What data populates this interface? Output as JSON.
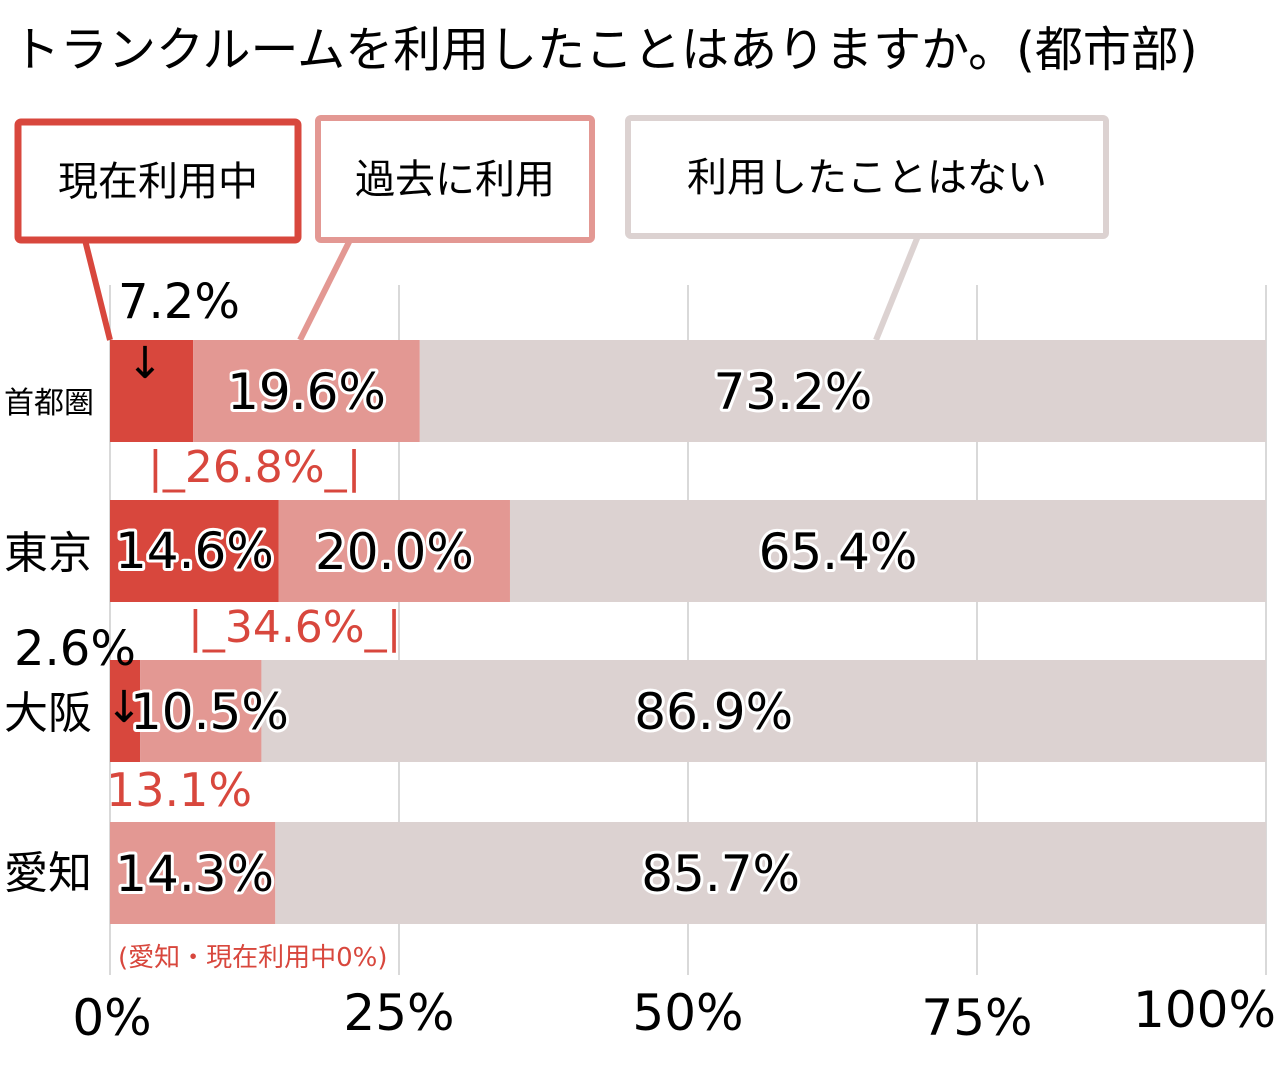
{
  "chart_data": {
    "type": "bar",
    "stacked": true,
    "orientation": "horizontal",
    "title": "トランクルームを利用したことはありますか。(都市部)",
    "categories": [
      "首都圏",
      "東京",
      "大阪",
      "愛知"
    ],
    "series": [
      {
        "name": "現在利用中",
        "values": [
          7.2,
          14.6,
          2.6,
          0
        ],
        "color": "#d8473d"
      },
      {
        "name": "過去に利用",
        "values": [
          19.6,
          20.0,
          10.5,
          14.3
        ],
        "color": "#e39893"
      },
      {
        "name": "利用したことはない",
        "values": [
          73.2,
          65.4,
          86.9,
          85.7
        ],
        "color": "#dcd2d1"
      }
    ],
    "value_labels": {
      "current": [
        "7.2%",
        "14.6%",
        "2.6%",
        ""
      ],
      "past": [
        "19.6%",
        "20.0%",
        "10.5%",
        "14.3%"
      ],
      "never": [
        "73.2%",
        "65.4%",
        "86.9%",
        "85.7%"
      ]
    },
    "subtotal_labels": [
      "|_26.8%_|",
      "|_34.6%_|",
      "13.1%",
      ""
    ],
    "subtotal_values": [
      26.8,
      34.6,
      13.1
    ],
    "note": "(愛知・現在利用中0%)",
    "x_ticks": [
      0,
      25,
      50,
      75,
      100
    ],
    "x_tick_labels": [
      "0%",
      "25%",
      "50%",
      "75%",
      "100%"
    ],
    "xlim": [
      0,
      100
    ],
    "arrow_glyph": "↓",
    "grid": true,
    "legend_position": "top",
    "colors": {
      "current": "#d8473d",
      "past": "#e39893",
      "never": "#dcd2d1",
      "grid": "#d9d9d9",
      "annotation": "#d8473d"
    }
  }
}
